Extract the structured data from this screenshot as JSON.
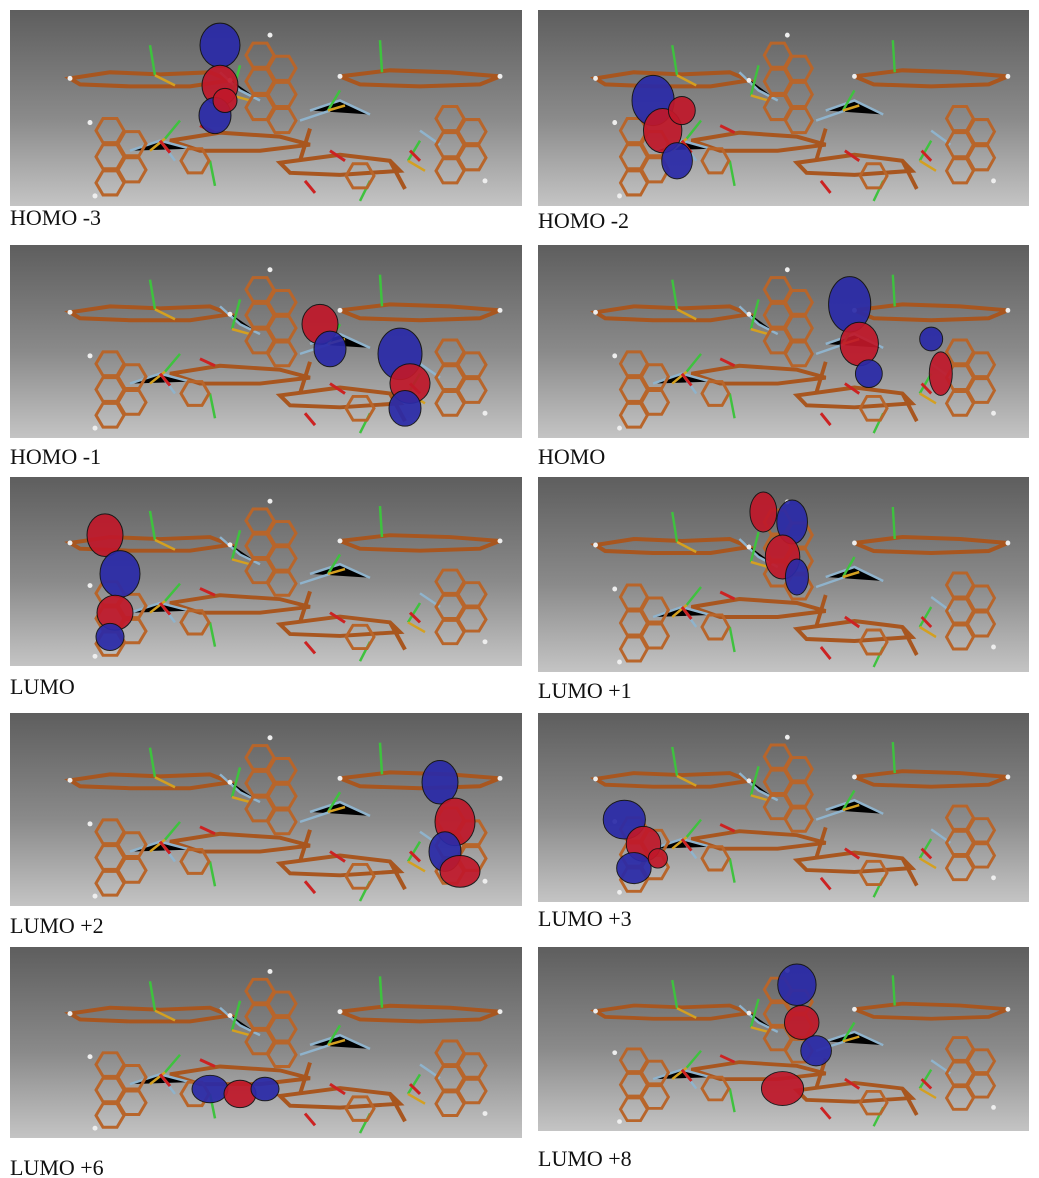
{
  "panels": [
    {
      "label": "HOMO -3"
    },
    {
      "label": "HOMO -2"
    },
    {
      "label": "HOMO -1"
    },
    {
      "label": "HOMO"
    },
    {
      "label": "LUMO"
    },
    {
      "label": "LUMO +1"
    },
    {
      "label": "LUMO +2"
    },
    {
      "label": "LUMO +3"
    },
    {
      "label": "LUMO +6"
    },
    {
      "label": "LUMO +8"
    }
  ]
}
